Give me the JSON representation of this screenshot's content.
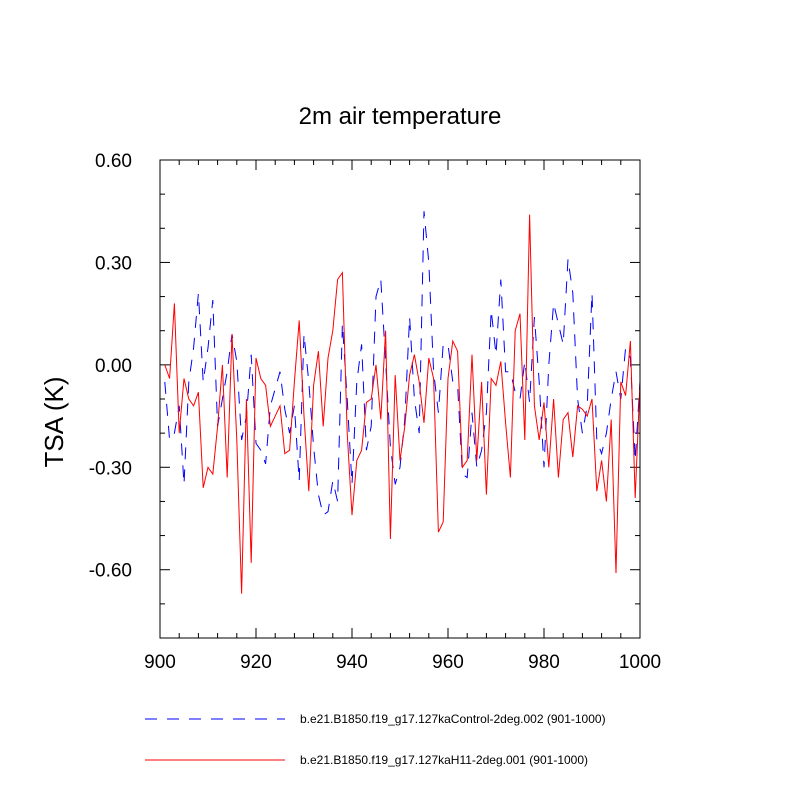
{
  "chart_data": {
    "type": "line",
    "title": "2m air temperature",
    "xlabel": "",
    "ylabel": "TSA  (K)",
    "xlim": [
      900,
      1000
    ],
    "ylim": [
      -0.8,
      0.6
    ],
    "xticks": [
      900,
      920,
      940,
      960,
      980,
      1000
    ],
    "xtick_labels": [
      "900",
      "920",
      "940",
      "960",
      "980",
      "1000"
    ],
    "yticks": [
      0.6,
      0.3,
      0.0,
      -0.3,
      -0.6
    ],
    "ytick_labels": [
      "0.60",
      "0.30",
      "0.00",
      "-0.30",
      "-0.60"
    ],
    "x": [
      901,
      902,
      903,
      904,
      905,
      906,
      907,
      908,
      909,
      910,
      911,
      912,
      913,
      914,
      915,
      916,
      917,
      918,
      919,
      920,
      921,
      922,
      923,
      924,
      925,
      926,
      927,
      928,
      929,
      930,
      931,
      932,
      933,
      934,
      935,
      936,
      937,
      938,
      939,
      940,
      941,
      942,
      943,
      944,
      945,
      946,
      947,
      948,
      949,
      950,
      951,
      952,
      953,
      954,
      955,
      956,
      957,
      958,
      959,
      960,
      961,
      962,
      963,
      964,
      965,
      966,
      967,
      968,
      969,
      970,
      971,
      972,
      973,
      974,
      975,
      976,
      977,
      978,
      979,
      980,
      981,
      982,
      983,
      984,
      985,
      986,
      987,
      988,
      989,
      990,
      991,
      992,
      993,
      994,
      995,
      996,
      997,
      998,
      999,
      1000
    ],
    "series": [
      {
        "name": "b.e21.B1850.f19_g17.127kaControl-2deg.002 (901-1000)",
        "color": "#0000ff",
        "style": "dashed",
        "values": [
          -0.05,
          -0.22,
          -0.2,
          -0.12,
          -0.35,
          -0.05,
          0.05,
          0.21,
          -0.05,
          0.05,
          0.19,
          -0.18,
          -0.1,
          -0.02,
          0.09,
          0.01,
          -0.22,
          -0.15,
          0.03,
          -0.23,
          -0.25,
          -0.29,
          -0.12,
          -0.07,
          -0.02,
          -0.13,
          -0.2,
          -0.12,
          -0.34,
          0.09,
          -0.05,
          -0.24,
          -0.38,
          -0.44,
          -0.43,
          -0.34,
          -0.4,
          0.12,
          -0.1,
          -0.35,
          -0.05,
          0.06,
          -0.25,
          -0.18,
          0.2,
          0.25,
          0.01,
          -0.24,
          -0.35,
          -0.3,
          -0.16,
          0.14,
          -0.1,
          -0.2,
          0.45,
          0.3,
          -0.02,
          -0.14,
          0.06,
          0.06,
          -0.05,
          -0.06,
          -0.32,
          -0.33,
          -0.14,
          -0.3,
          -0.25,
          -0.14,
          0.16,
          0.03,
          0.25,
          -0.02,
          -0.02,
          -0.08,
          -0.1,
          0.01,
          -0.11,
          0.14,
          -0.05,
          -0.3,
          0.0,
          0.18,
          0.12,
          0.06,
          0.31,
          0.21,
          -0.1,
          -0.2,
          -0.12,
          0.21,
          -0.22,
          -0.26,
          -0.2,
          -0.1,
          -0.02,
          -0.1,
          0.05,
          0.02,
          -0.28,
          -0.05
        ]
      },
      {
        "name": "b.e21.B1850.f19_g17.127kaH11-2deg.001 (901-1000)",
        "color": "#ff0000",
        "style": "solid",
        "values": [
          0.0,
          -0.04,
          0.18,
          -0.2,
          -0.04,
          -0.1,
          -0.12,
          -0.08,
          -0.36,
          -0.3,
          -0.32,
          -0.18,
          0.0,
          -0.33,
          0.09,
          -0.22,
          -0.67,
          -0.1,
          -0.58,
          0.02,
          -0.04,
          -0.06,
          -0.18,
          -0.15,
          -0.12,
          -0.26,
          -0.25,
          -0.05,
          0.13,
          -0.15,
          -0.37,
          -0.06,
          0.04,
          -0.18,
          0.02,
          0.1,
          0.25,
          0.27,
          -0.2,
          -0.44,
          -0.28,
          -0.25,
          -0.11,
          -0.1,
          0.0,
          -0.16,
          0.1,
          -0.51,
          -0.03,
          -0.28,
          -0.18,
          -0.03,
          0.03,
          -0.05,
          -0.17,
          0.02,
          -0.04,
          -0.49,
          -0.46,
          -0.04,
          0.07,
          0.04,
          -0.3,
          -0.28,
          0.03,
          -0.28,
          -0.05,
          -0.38,
          -0.04,
          -0.06,
          0.01,
          -0.17,
          -0.33,
          0.1,
          0.15,
          -0.22,
          0.44,
          -0.12,
          -0.22,
          -0.11,
          -0.3,
          -0.1,
          -0.33,
          -0.16,
          -0.14,
          -0.27,
          -0.12,
          -0.13,
          -0.15,
          -0.1,
          -0.37,
          -0.28,
          -0.4,
          -0.16,
          -0.61,
          -0.05,
          -0.09,
          0.07,
          -0.39,
          -0.05
        ]
      }
    ],
    "legend_position": "bottom"
  }
}
